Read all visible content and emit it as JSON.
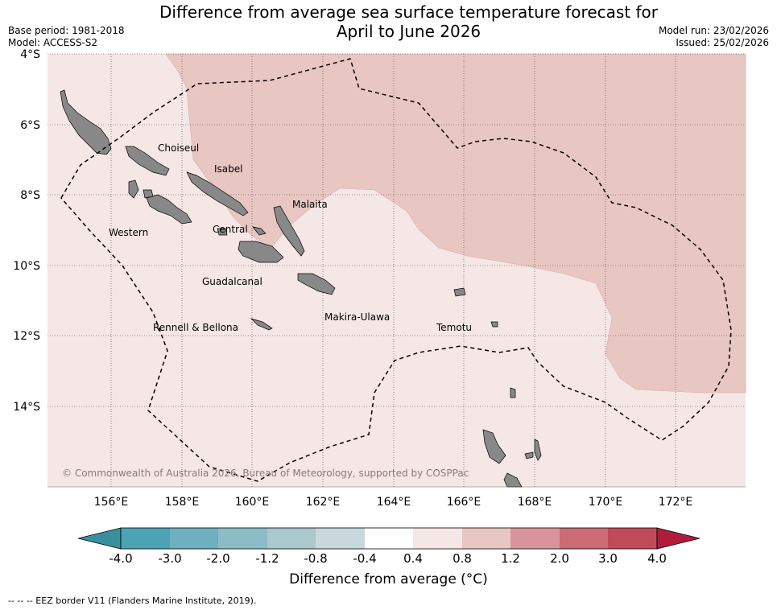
{
  "title": {
    "line1": "Difference from average sea surface temperature forecast for",
    "line2": "April to June 2026"
  },
  "meta": {
    "base_period": "Base period: 1981-2018",
    "model": "Model: ACCESS-S2",
    "model_run": "Model run: 23/02/2026",
    "issued": "Issued: 25/02/2026"
  },
  "map": {
    "lat_ticks": [
      "4°S",
      "6°S",
      "8°S",
      "10°S",
      "12°S",
      "14°S"
    ],
    "lon_ticks": [
      "156°E",
      "158°E",
      "160°E",
      "162°E",
      "164°E",
      "166°E",
      "168°E",
      "170°E",
      "172°E"
    ],
    "lat_range": [
      -16.2,
      -3.9
    ],
    "lon_range": [
      154.2,
      174.0
    ],
    "grid": true,
    "province_labels": [
      "Choiseul",
      "Isabel",
      "Malaita",
      "Western",
      "Central",
      "Guadalcanal",
      "Makira-Ulawa",
      "Rennell & Bellona",
      "Temotu"
    ],
    "copyright": "© Commonwealth of Australia 2026, Bureau of Meteorology, supported by COSPPac",
    "colors": {
      "anomaly_0_4_to_0_8": "#f5e7e6",
      "anomaly_0_8_to_1_2": "#e8c6c2",
      "land": "#888888",
      "eez_border": "#000000"
    }
  },
  "colorbar": {
    "labels": [
      "-4.0",
      "-3.0",
      "-2.0",
      "-1.2",
      "-0.8",
      "-0.4",
      "0.4",
      "0.8",
      "1.2",
      "2.0",
      "3.0",
      "4.0"
    ],
    "colors": [
      "#3a8f9e",
      "#4ba3b5",
      "#6eb0bf",
      "#8cbcc6",
      "#a9c9cc",
      "#c8d8dc",
      "#ffffff",
      "#f5e7e6",
      "#e8c6c2",
      "#d9939a",
      "#cb6b75",
      "#c04a58",
      "#b01c3c"
    ],
    "label": "Difference from average (°C)"
  },
  "footer": "--  --  -- EEZ border V11 (Flanders Marine Institute, 2019)."
}
